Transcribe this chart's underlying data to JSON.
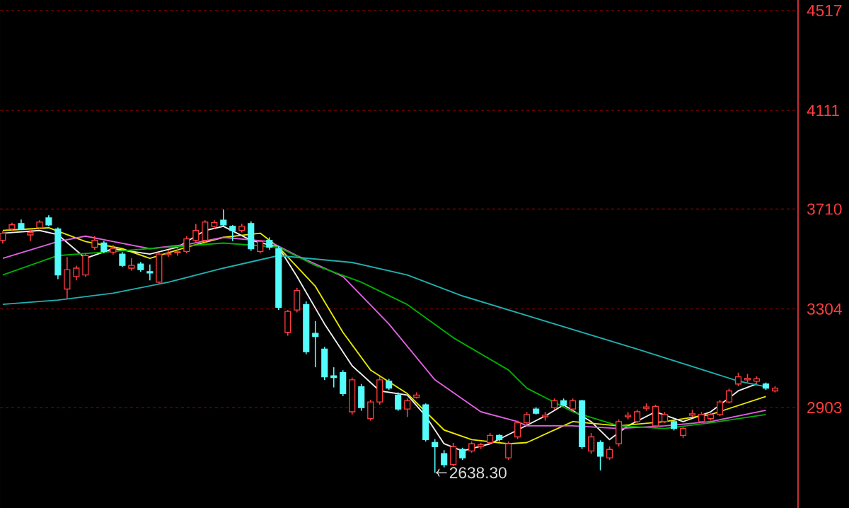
{
  "chart_data": {
    "type": "candlestick",
    "categories": [
      null,
      null,
      null,
      null,
      null,
      null,
      null,
      null,
      null,
      null,
      null,
      null,
      null,
      null,
      null,
      null,
      null,
      null,
      null,
      null,
      null,
      null,
      null,
      null,
      null,
      null,
      null,
      null,
      null,
      null,
      null,
      null,
      null,
      null,
      null,
      null,
      null,
      null,
      null,
      null,
      null,
      null,
      null,
      null,
      null,
      null,
      null,
      null,
      null,
      null,
      null,
      null,
      null,
      null,
      null,
      null,
      null,
      null,
      null,
      null,
      null,
      null,
      null,
      null,
      null,
      null,
      null,
      null,
      null,
      null,
      null,
      null,
      null,
      null,
      null,
      null,
      null,
      null,
      null,
      null,
      null,
      null,
      null,
      null,
      null
    ],
    "ohlc": [
      [
        3583,
        3620,
        3570,
        3612
      ],
      [
        3629,
        3655,
        3620,
        3646
      ],
      [
        3651,
        3668,
        3625,
        3629
      ],
      [
        3605,
        3625,
        3580,
        3615
      ],
      [
        3634,
        3665,
        3628,
        3657
      ],
      [
        3674,
        3685,
        3640,
        3646
      ],
      [
        3629,
        3635,
        3425,
        3442
      ],
      [
        3385,
        3515,
        3345,
        3464
      ],
      [
        3436,
        3480,
        3420,
        3470
      ],
      [
        3442,
        3530,
        3435,
        3521
      ],
      [
        3555,
        3600,
        3545,
        3583
      ],
      [
        3572,
        3580,
        3530,
        3538
      ],
      [
        3535,
        3565,
        3525,
        3550
      ],
      [
        3527,
        3535,
        3475,
        3481
      ],
      [
        3470,
        3510,
        3460,
        3481
      ],
      [
        3487,
        3495,
        3455,
        3464
      ],
      [
        3456,
        3485,
        3420,
        3450
      ],
      [
        3413,
        3535,
        3405,
        3527
      ],
      [
        3525,
        3545,
        3515,
        3529
      ],
      [
        3532,
        3550,
        3520,
        3536
      ],
      [
        3538,
        3600,
        3530,
        3589
      ],
      [
        3583,
        3650,
        3575,
        3623
      ],
      [
        3583,
        3665,
        3575,
        3657
      ],
      [
        3640,
        3665,
        3630,
        3655
      ],
      [
        3665,
        3708,
        3640,
        3646
      ],
      [
        3640,
        3645,
        3580,
        3623
      ],
      [
        3623,
        3650,
        3615,
        3640
      ],
      [
        3651,
        3660,
        3540,
        3549
      ],
      [
        3538,
        3585,
        3530,
        3578
      ],
      [
        3583,
        3595,
        3545,
        3555
      ],
      [
        3549,
        3560,
        3300,
        3311
      ],
      [
        3209,
        3300,
        3195,
        3294
      ],
      [
        3300,
        3390,
        3290,
        3379
      ],
      [
        3322,
        3335,
        3120,
        3130
      ],
      [
        3205,
        3255,
        3067,
        3192
      ],
      [
        3141,
        3150,
        3015,
        3028
      ],
      [
        3032,
        3067,
        2985,
        3025
      ],
      [
        3045,
        3055,
        2950,
        2960
      ],
      [
        2886,
        3025,
        2875,
        3016
      ],
      [
        2988,
        2999,
        2890,
        2903
      ],
      [
        2858,
        2935,
        2850,
        2926
      ],
      [
        2926,
        3030,
        2915,
        3016
      ],
      [
        3011,
        3020,
        2975,
        2982
      ],
      [
        2954,
        2965,
        2890,
        2897
      ],
      [
        2897,
        2940,
        2865,
        2931
      ],
      [
        2945,
        2965,
        2940,
        2954
      ],
      [
        2914,
        2920,
        2765,
        2773
      ],
      [
        2761,
        2775,
        2638.3,
        2744
      ],
      [
        2716,
        2730,
        2660,
        2671
      ],
      [
        2671,
        2760,
        2665,
        2744
      ],
      [
        2733,
        2740,
        2690,
        2699
      ],
      [
        2727,
        2765,
        2720,
        2756
      ],
      [
        2745,
        2760,
        2735,
        2752
      ],
      [
        2761,
        2800,
        2755,
        2790
      ],
      [
        2790,
        2795,
        2765,
        2773
      ],
      [
        2699,
        2765,
        2690,
        2756
      ],
      [
        2784,
        2850,
        2775,
        2841
      ],
      [
        2841,
        2885,
        2835,
        2875
      ],
      [
        2897,
        2905,
        2875,
        2880
      ],
      [
        2866,
        2885,
        2850,
        2872
      ],
      [
        2903,
        2940,
        2895,
        2931
      ],
      [
        2931,
        2940,
        2908,
        2914
      ],
      [
        2897,
        2940,
        2890,
        2931
      ],
      [
        2931,
        2935,
        2735,
        2744
      ],
      [
        2727,
        2800,
        2715,
        2784
      ],
      [
        2761,
        2770,
        2648,
        2705
      ],
      [
        2699,
        2745,
        2690,
        2733
      ],
      [
        2756,
        2855,
        2745,
        2846
      ],
      [
        2866,
        2885,
        2855,
        2872
      ],
      [
        2846,
        2895,
        2840,
        2886
      ],
      [
        2900,
        2920,
        2890,
        2906
      ],
      [
        2829,
        2915,
        2820,
        2908
      ],
      [
        2846,
        2885,
        2840,
        2875
      ],
      [
        2846,
        2855,
        2810,
        2818
      ],
      [
        2790,
        2825,
        2780,
        2818
      ],
      [
        2872,
        2895,
        2865,
        2878
      ],
      [
        2846,
        2885,
        2840,
        2875
      ],
      [
        2858,
        2880,
        2850,
        2875
      ],
      [
        2875,
        2935,
        2868,
        2926
      ],
      [
        2926,
        2980,
        2920,
        2971
      ],
      [
        2999,
        3045,
        2990,
        3028
      ],
      [
        3016,
        3040,
        3005,
        3022
      ],
      [
        3010,
        3030,
        3000,
        3020
      ],
      [
        2999,
        3005,
        2975,
        2982
      ],
      [
        2971,
        2990,
        2965,
        2982
      ]
    ],
    "colors": [
      "#ff3c3c",
      "#ff3c3c",
      "#54fcfc",
      "#ff3c3c",
      "#ff3c3c",
      "#54fcfc",
      "#54fcfc",
      "#ff3c3c",
      "#ff3c3c",
      "#ff3c3c",
      "#ff3c3c",
      "#54fcfc",
      "#ff3c3c",
      "#54fcfc",
      "#ff3c3c",
      "#54fcfc",
      "#54fcfc",
      "#ff3c3c",
      "#ff3c3c",
      "#ff3c3c",
      "#ff3c3c",
      "#ff3c3c",
      "#ff3c3c",
      "#ff3c3c",
      "#54fcfc",
      "#54fcfc",
      "#ff3c3c",
      "#54fcfc",
      "#ff3c3c",
      "#54fcfc",
      "#54fcfc",
      "#ff3c3c",
      "#ff3c3c",
      "#54fcfc",
      "#54fcfc",
      "#54fcfc",
      "#54fcfc",
      "#54fcfc",
      "#ff3c3c",
      "#54fcfc",
      "#ff3c3c",
      "#ff3c3c",
      "#54fcfc",
      "#54fcfc",
      "#ff3c3c",
      "#ff3c3c",
      "#54fcfc",
      "#54fcfc",
      "#54fcfc",
      "#ff3c3c",
      "#54fcfc",
      "#ff3c3c",
      "#ff3c3c",
      "#ff3c3c",
      "#54fcfc",
      "#ff3c3c",
      "#ff3c3c",
      "#ff3c3c",
      "#54fcfc",
      "#ff3c3c",
      "#ff3c3c",
      "#54fcfc",
      "#ff3c3c",
      "#54fcfc",
      "#ff3c3c",
      "#54fcfc",
      "#ff3c3c",
      "#ff3c3c",
      "#ff3c3c",
      "#ff3c3c",
      "#ff3c3c",
      "#ff3c3c",
      "#ff3c3c",
      "#54fcfc",
      "#ff3c3c",
      "#ff3c3c",
      "#ff3c3c",
      "#ff3c3c",
      "#ff3c3c",
      "#ff3c3c",
      "#ff3c3c",
      "#ff3c3c",
      "#ff3c3c",
      "#54fcfc",
      "#ff3c3c"
    ],
    "series": [
      {
        "type": "line",
        "color": "#f0f0f0",
        "values": [
          3612,
          null,
          null,
          null,
          3623,
          null,
          3606,
          null,
          null,
          3510,
          null,
          null,
          3549,
          null,
          null,
          null,
          3527,
          null,
          null,
          3555,
          null,
          null,
          3623,
          null,
          3640,
          null,
          null,
          3583,
          null,
          null,
          3555,
          null,
          3436,
          null,
          null,
          3243,
          null,
          null,
          3073,
          null,
          null,
          2971,
          null,
          null,
          2954,
          null,
          2869,
          null,
          2756,
          null,
          2727,
          null,
          null,
          2756,
          null,
          null,
          2812,
          null,
          null,
          2869,
          null,
          2914,
          null,
          null,
          2846,
          null,
          2773,
          null,
          2829,
          null,
          null,
          2886,
          null,
          null,
          2846,
          null,
          null,
          2886,
          null,
          null,
          2971,
          null,
          2999,
          null,
          null
        ]
      },
      {
        "type": "line",
        "color": "#e8e800",
        "values": [
          3623,
          null,
          null,
          null,
          null,
          3634,
          null,
          null,
          null,
          3578,
          null,
          null,
          null,
          3549,
          null,
          null,
          3510,
          null,
          null,
          null,
          3555,
          null,
          null,
          null,
          3595,
          null,
          null,
          null,
          3612,
          null,
          3555,
          null,
          null,
          null,
          3396,
          null,
          null,
          3209,
          null,
          null,
          3056,
          null,
          null,
          null,
          2960,
          null,
          null,
          null,
          2812,
          null,
          null,
          2773,
          null,
          null,
          null,
          2756,
          null,
          2761,
          null,
          null,
          null,
          null,
          2846,
          null,
          null,
          null,
          null,
          2829,
          null,
          null,
          null,
          null,
          2846,
          null,
          null,
          null,
          null,
          2875,
          null,
          null,
          null,
          null,
          null,
          2948,
          null
        ]
      },
      {
        "type": "line",
        "color": "#e060e0",
        "values": [
          3510,
          null,
          null,
          null,
          null,
          null,
          3578,
          null,
          null,
          3600,
          null,
          null,
          3578,
          null,
          null,
          null,
          3549,
          null,
          null,
          null,
          3566,
          null,
          null,
          null,
          3595,
          null,
          null,
          null,
          null,
          3578,
          null,
          null,
          3521,
          null,
          null,
          null,
          null,
          3436,
          null,
          null,
          null,
          null,
          3243,
          null,
          null,
          null,
          null,
          3016,
          null,
          null,
          null,
          null,
          2886,
          null,
          null,
          null,
          2846,
          2829,
          null,
          null,
          null,
          null,
          2829,
          null,
          null,
          null,
          null,
          2818,
          null,
          null,
          null,
          null,
          2829,
          null,
          null,
          null,
          null,
          2846,
          null,
          null,
          null,
          null,
          null,
          2892,
          null
        ]
      },
      {
        "type": "line",
        "color": "#00b000",
        "values": [
          3442,
          null,
          null,
          null,
          null,
          null,
          3521,
          null,
          null,
          null,
          null,
          null,
          3538,
          null,
          null,
          null,
          null,
          null,
          3555,
          null,
          null,
          null,
          null,
          null,
          3572,
          null,
          null,
          null,
          null,
          null,
          3555,
          null,
          null,
          null,
          3481,
          null,
          null,
          null,
          null,
          3413,
          null,
          null,
          null,
          null,
          3322,
          null,
          null,
          null,
          null,
          3187,
          null,
          null,
          null,
          null,
          null,
          3056,
          null,
          2982,
          null,
          null,
          null,
          null,
          2886,
          null,
          null,
          null,
          null,
          2829,
          null,
          null,
          null,
          null,
          2818,
          null,
          null,
          null,
          null,
          2841,
          null,
          null,
          null,
          null,
          null,
          2875,
          null
        ]
      },
      {
        "type": "line",
        "color": "#20b0b0",
        "values": [
          3323,
          null,
          null,
          null,
          null,
          null,
          3340,
          null,
          null,
          null,
          null,
          null,
          3368,
          null,
          null,
          null,
          null,
          null,
          3413,
          null,
          null,
          null,
          null,
          null,
          3470,
          null,
          null,
          null,
          null,
          null,
          3521,
          null,
          null,
          null,
          null,
          null,
          null,
          null,
          3493,
          null,
          null,
          null,
          null,
          null,
          3442,
          null,
          null,
          null,
          null,
          null,
          3357,
          null,
          null,
          null,
          null,
          null,
          null,
          null,
          3266,
          null,
          null,
          null,
          null,
          null,
          null,
          null,
          null,
          null,
          null,
          3141,
          null,
          null,
          null,
          null,
          null,
          null,
          null,
          null,
          null,
          null,
          3011,
          null,
          null,
          2988,
          null
        ]
      }
    ],
    "ylim": [
      2495,
      4560
    ],
    "yticks": [
      2903,
      3304,
      3710,
      4111,
      4517
    ],
    "grid": "y",
    "tick_labels": "y",
    "annotations": [
      "2638.30"
    ]
  }
}
